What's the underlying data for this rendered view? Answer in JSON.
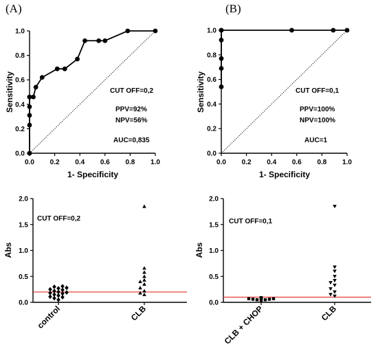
{
  "chart_data": [
    {
      "type": "line",
      "panel_label": "(A)",
      "xlabel": "1- Specificity",
      "ylabel": "Sensitivity",
      "xlim": [
        0,
        1
      ],
      "ylim": [
        0,
        1
      ],
      "xticks": [
        "0.0",
        "0.2",
        "0.4",
        "0.6",
        "0.8",
        "1.0"
      ],
      "yticks": [
        "0.0",
        "0.2",
        "0.4",
        "0.6",
        "0.8",
        "1.0"
      ],
      "series": [
        {
          "x": [
            0,
            0,
            0,
            0,
            0,
            0,
            0.03,
            0.05,
            0.1,
            0.22,
            0.28,
            0.38,
            0.44,
            0.55,
            0.6,
            0.78,
            1.0
          ],
          "y": [
            0,
            0.23,
            0.31,
            0.38,
            0.46,
            0.46,
            0.46,
            0.54,
            0.62,
            0.69,
            0.69,
            0.77,
            0.92,
            0.92,
            0.92,
            1.0,
            1.0
          ]
        }
      ],
      "reference_line": {
        "x": [
          0,
          1
        ],
        "y": [
          0,
          1
        ],
        "style": "dotted"
      },
      "annotations": [
        "CUT OFF=0,2",
        "PPV=92%",
        "NPV=56%",
        "AUC=0,835"
      ]
    },
    {
      "type": "line",
      "panel_label": "(B)",
      "xlabel": "1- Specificity",
      "ylabel": "Sensitivity",
      "xlim": [
        0,
        1
      ],
      "ylim": [
        0,
        1
      ],
      "xticks": [
        "0.0",
        "0.2",
        "0.4",
        "0.6",
        "0.8",
        "1.0"
      ],
      "yticks": [
        "0.0",
        "0.2",
        "0.4",
        "0.6",
        "0.8",
        "1.0"
      ],
      "series": [
        {
          "x": [
            0,
            0,
            0,
            0,
            0,
            0,
            0.56,
            0.89,
            1.0
          ],
          "y": [
            0.54,
            0.69,
            0.77,
            0.92,
            1.0,
            1.0,
            1.0,
            1.0,
            1.0
          ]
        }
      ],
      "reference_line": {
        "x": [
          0,
          1
        ],
        "y": [
          0,
          1
        ],
        "style": "dotted"
      },
      "annotations": [
        "CUT OFF=0,1",
        "PPV=100%",
        "NPV=100%",
        "AUC=1"
      ]
    },
    {
      "type": "scatter",
      "ylabel": "Abs",
      "ylim": [
        0,
        2.0
      ],
      "yticks": [
        "0.0",
        "0.5",
        "1.0",
        "1.5",
        "2.0"
      ],
      "categories": [
        "control",
        "CLB"
      ],
      "cutoff": 0.2,
      "cutoff_color": "#e0302a",
      "annotation": "CUT OFF=0,2",
      "series": [
        {
          "name": "control",
          "marker": "diamond",
          "values": [
            0.05,
            0.08,
            0.1,
            0.11,
            0.13,
            0.15,
            0.17,
            0.18,
            0.19,
            0.2,
            0.22,
            0.24,
            0.25,
            0.27,
            0.28,
            0.3,
            0.31
          ]
        },
        {
          "name": "CLB",
          "marker": "triangle-up",
          "values": [
            0.15,
            0.18,
            0.22,
            0.28,
            0.35,
            0.4,
            0.43,
            0.5,
            0.58,
            0.66,
            1.85
          ]
        }
      ]
    },
    {
      "type": "scatter",
      "ylabel": "Abs",
      "ylim": [
        0,
        2.0
      ],
      "yticks": [
        "0.0",
        "0.5",
        "1.0",
        "1.5",
        "2.0"
      ],
      "categories": [
        "CLB + CHOP",
        "CLB"
      ],
      "cutoff": 0.1,
      "cutoff_color": "#e0302a",
      "annotation": "CUT OFF=0,1",
      "series": [
        {
          "name": "CLB + CHOP",
          "marker": "square",
          "values": [
            0.04,
            0.05,
            0.05,
            0.06,
            0.06,
            0.07,
            0.07,
            0.08,
            0.08,
            0.09
          ]
        },
        {
          "name": "CLB",
          "marker": "triangle-down",
          "values": [
            0.12,
            0.15,
            0.2,
            0.26,
            0.33,
            0.38,
            0.42,
            0.5,
            0.6,
            0.68,
            1.85
          ]
        }
      ]
    }
  ]
}
